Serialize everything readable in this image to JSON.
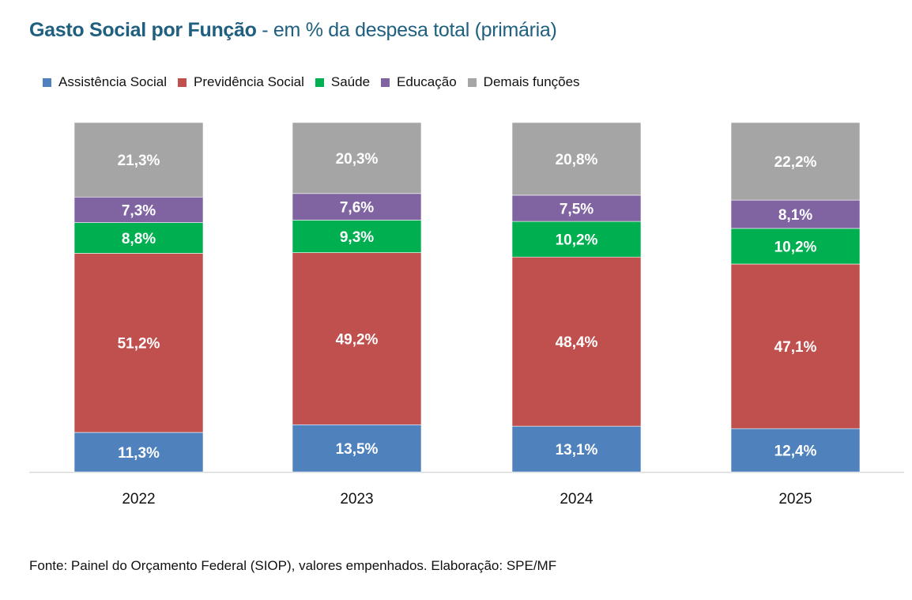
{
  "chart_data": {
    "type": "bar",
    "stacked": true,
    "title": "Gasto Social por Função",
    "subtitle": "- em % da despesa total (primária)",
    "xlabel": "",
    "ylabel": "",
    "ylim": [
      0,
      100
    ],
    "grid": false,
    "legend_position": "top-left",
    "categories": [
      "2022",
      "2023",
      "2024",
      "2025"
    ],
    "series": [
      {
        "name": "Assistência Social",
        "color": "#4f81bd",
        "values": [
          11.3,
          13.5,
          13.1,
          12.4
        ],
        "labels": [
          "11,3%",
          "13,5%",
          "13,1%",
          "12,4%"
        ]
      },
      {
        "name": "Previdência Social",
        "color": "#c0504d",
        "values": [
          51.2,
          49.2,
          48.4,
          47.1
        ],
        "labels": [
          "51,2%",
          "49,2%",
          "48,4%",
          "47,1%"
        ]
      },
      {
        "name": "Saúde",
        "color": "#00b050",
        "values": [
          8.8,
          9.3,
          10.2,
          10.2
        ],
        "labels": [
          "8,8%",
          "9,3%",
          "10,2%",
          "10,2%"
        ]
      },
      {
        "name": "Educação",
        "color": "#8064a2",
        "values": [
          7.3,
          7.6,
          7.5,
          8.1
        ],
        "labels": [
          "7,3%",
          "7,6%",
          "7,5%",
          "8,1%"
        ]
      },
      {
        "name": "Demais funções",
        "color": "#a5a5a5",
        "values": [
          21.3,
          20.3,
          20.8,
          22.2
        ],
        "labels": [
          "21,3%",
          "20,3%",
          "20,8%",
          "22,2%"
        ]
      }
    ],
    "source": "Fonte: Painel do Orçamento Federal (SIOP), valores empenhados. Elaboração: SPE/MF"
  }
}
